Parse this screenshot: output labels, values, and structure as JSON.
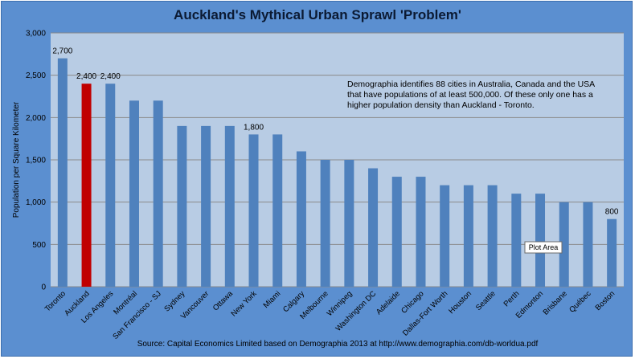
{
  "chart_data": {
    "type": "bar",
    "title": "Auckland's Mythical Urban Sprawl 'Problem'",
    "xlabel": "",
    "ylabel": "Population per Square Kilometer",
    "ylim": [
      0,
      3000
    ],
    "yticks": [
      0,
      500,
      1000,
      1500,
      2000,
      2500,
      3000
    ],
    "ytick_labels": [
      "0",
      "500",
      "1,000",
      "1,500",
      "2,000",
      "2,500",
      "3,000"
    ],
    "grid": true,
    "legend": "none",
    "categories": [
      "Toronto",
      "Auckland",
      "Los Angeles",
      "Montréal",
      "San Francisco - SJ",
      "Sydney",
      "Vancouver",
      "Ottawa",
      "New York",
      "Miami",
      "Calgary",
      "Melbourne",
      "Winnipeg",
      "Washington DC",
      "Adelaide",
      "Chicago",
      "Dallas-Fort Worth",
      "Houston",
      "Seattle",
      "Perth",
      "Edmonton",
      "Brisbane",
      "Québec",
      "Boston"
    ],
    "values": [
      2700,
      2400,
      2400,
      2200,
      2200,
      1900,
      1900,
      1900,
      1800,
      1800,
      1600,
      1500,
      1500,
      1400,
      1300,
      1300,
      1200,
      1200,
      1200,
      1100,
      1100,
      1000,
      1000,
      800
    ],
    "data_labels": [
      {
        "category": "Toronto",
        "text": "2,700"
      },
      {
        "category": "Auckland",
        "text": "2,400"
      },
      {
        "category": "Los Angeles",
        "text": "2,400"
      },
      {
        "category": "New York",
        "text": "1,800"
      },
      {
        "category": "Boston",
        "text": "800"
      }
    ],
    "highlight": {
      "category": "Auckland",
      "color": "#c00000"
    },
    "bar_color": "#4f81bd",
    "annotation": [
      "Demographia identifies 88 cities in Australia, Canada and the USA",
      "that have populations of at least 500,000.    Of these only one has a",
      "higher population density than Auckland - Toronto."
    ],
    "source": "Source: Capital Economics Limited based on Demographia 2013 at http://www.demographia.com/db-worldua.pdf",
    "tooltip": "Plot Area"
  },
  "colors": {
    "outer_background": "#5b8fd0",
    "plot_background": "#b8cce4",
    "gridline": "#8a8a8a"
  }
}
